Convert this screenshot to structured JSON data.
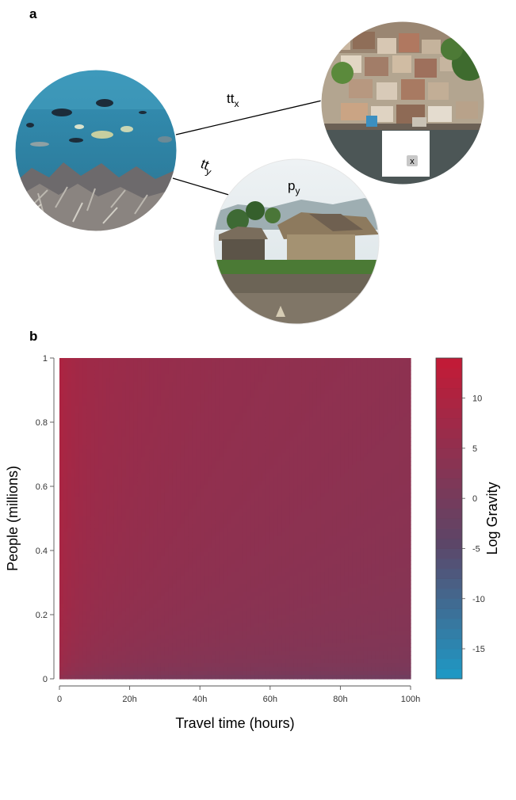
{
  "panel_a": {
    "letter": "a",
    "edge_x_label": "tt",
    "edge_x_sub": "x",
    "edge_y_label": "tt",
    "edge_y_sub": "y",
    "pop_label": "p",
    "pop_sub": "y",
    "close_glyph": "x"
  },
  "panel_b": {
    "letter": "b"
  },
  "colors": {
    "high": "#c41a36",
    "mid": "#5c4668",
    "low": "#1d9ac6",
    "reef_water": "#2d7fa0",
    "sky": "#dfe8ea"
  },
  "chart_data": {
    "type": "heatmap",
    "title": "",
    "xlabel": "Travel time (hours)",
    "ylabel": "People (millions)",
    "xlim": [
      0,
      100
    ],
    "ylim": [
      0,
      1
    ],
    "x_ticks": [
      0,
      20,
      40,
      60,
      80,
      100
    ],
    "x_tick_labels": [
      "0",
      "20h",
      "40h",
      "60h",
      "80h",
      "100h"
    ],
    "y_ticks": [
      0,
      0.2,
      0.4,
      0.6,
      0.8,
      1
    ],
    "y_tick_labels": [
      "0",
      "0.2",
      "0.4",
      "0.6",
      "0.8",
      "1"
    ],
    "colorbar": {
      "label": "Log Gravity",
      "range": [
        -18,
        14
      ],
      "ticks": [
        10,
        5,
        0,
        -5,
        -10,
        -15
      ],
      "tick_labels": [
        "10",
        "5",
        "0",
        "-5",
        "-10",
        "-15"
      ],
      "levels": 32,
      "colors": [
        "#1d9ac6",
        "#5c4668",
        "#c41a36"
      ]
    },
    "grid": false
  }
}
